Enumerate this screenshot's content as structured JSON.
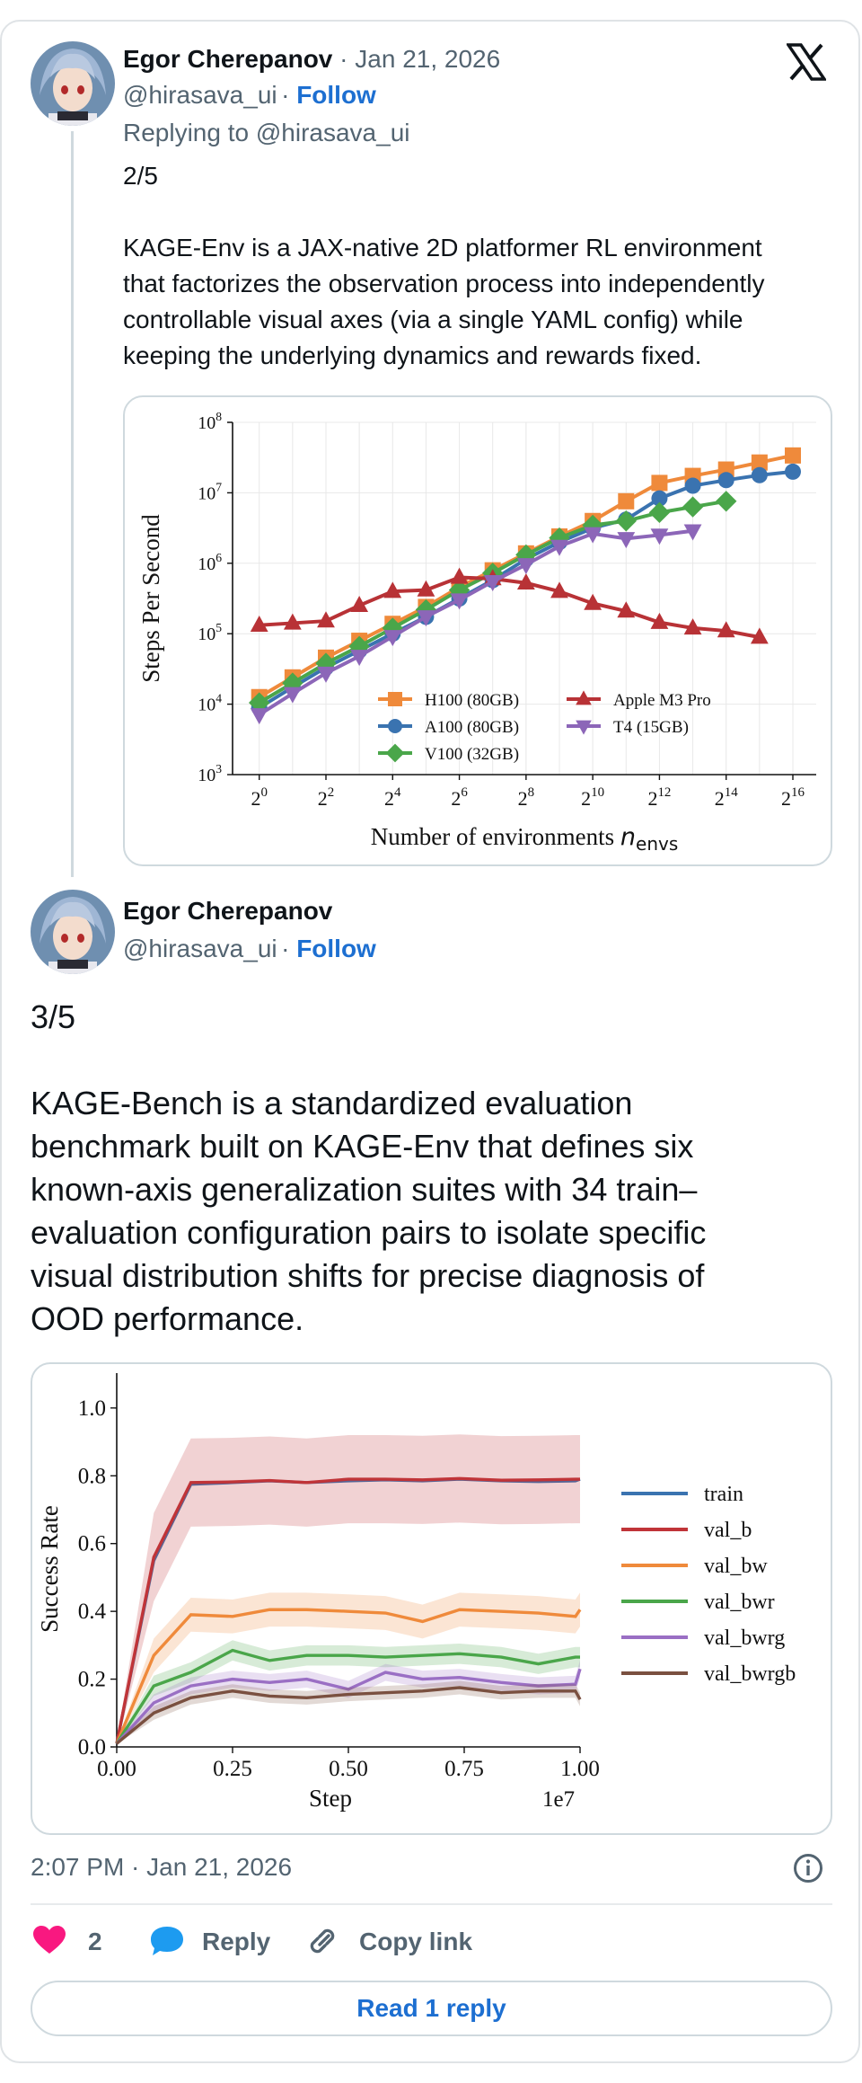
{
  "tweet1": {
    "author_name": "Egor Cherepanov",
    "date": "Jan 21, 2026",
    "handle": "@hirasava_ui",
    "follow_label": "Follow",
    "replying_to": "Replying to @hirasava_ui",
    "text_1": "2/5",
    "text_lines": [
      "KAGE-Env is a JAX-native 2D platformer RL environment",
      "that factorizes the observation process into independently",
      "controllable visual axes (via a single YAML config) while",
      "keeping the underlying dynamics and rewards fixed."
    ]
  },
  "tweet2": {
    "author_name": "Egor Cherepanov",
    "handle": "@hirasava_ui",
    "follow_label": "Follow",
    "text_1": "3/5",
    "text_lines": [
      "KAGE-Bench is a standardized evaluation",
      "benchmark built on KAGE-Env that defines six",
      "known-axis generalization suites with 34 train–",
      "evaluation configuration pairs to isolate specific",
      "visual distribution shifts for precise diagnosis of",
      "OOD performance."
    ]
  },
  "footer": {
    "timestamp": "2:07 PM · Jan 21, 2026",
    "like_count": "2",
    "reply_label": "Reply",
    "copy_link_label": "Copy link",
    "read_reply_label": "Read 1 reply"
  },
  "colors": {
    "link_blue": "#1d6fd1",
    "heart_red": "#f91880",
    "reply_blue": "#1d9bf0"
  },
  "chart_data": [
    {
      "type": "line",
      "title": "",
      "xlabel": "Number of environments n_envs",
      "ylabel": "Steps Per Second",
      "x_scale": "log2",
      "y_scale": "log10",
      "x_tick_labels": [
        "2^0",
        "2^2",
        "2^4",
        "2^6",
        "2^8",
        "2^10",
        "2^12",
        "2^14",
        "2^16"
      ],
      "y_tick_labels": [
        "10^3",
        "10^4",
        "10^5",
        "10^6",
        "10^7",
        "10^8"
      ],
      "x_range_log2": [
        -0.8,
        16.7
      ],
      "y_range_log10": [
        3,
        8
      ],
      "grid": true,
      "legend_position": "lower-right",
      "series": [
        {
          "name": "H100 (80GB)",
          "color": "#ef8a3b",
          "marker": "square",
          "x_log2": [
            0,
            1,
            2,
            3,
            4,
            5,
            6,
            7,
            8,
            9,
            10,
            11,
            12,
            13,
            14,
            15,
            16
          ],
          "y_log10": [
            4.1,
            4.38,
            4.66,
            4.9,
            5.14,
            5.38,
            5.66,
            5.9,
            6.14,
            6.38,
            6.6,
            6.88,
            7.14,
            7.24,
            7.33,
            7.43,
            7.53
          ]
        },
        {
          "name": "A100 (80GB)",
          "color": "#3a73b0",
          "marker": "circle",
          "x_log2": [
            0,
            1,
            2,
            3,
            4,
            5,
            6,
            7,
            8,
            9,
            10,
            11,
            12,
            13,
            14,
            15,
            16
          ],
          "y_log10": [
            3.95,
            4.24,
            4.52,
            4.76,
            5.0,
            5.24,
            5.5,
            5.76,
            6.06,
            6.3,
            6.5,
            6.62,
            6.92,
            7.1,
            7.18,
            7.25,
            7.3
          ]
        },
        {
          "name": "V100 (32GB)",
          "color": "#4aa64a",
          "marker": "diamond",
          "x_log2": [
            0,
            1,
            2,
            3,
            4,
            5,
            6,
            7,
            8,
            9,
            10,
            11,
            12,
            13,
            14
          ],
          "y_log10": [
            4.02,
            4.3,
            4.58,
            4.82,
            5.08,
            5.34,
            5.62,
            5.86,
            6.12,
            6.36,
            6.54,
            6.6,
            6.72,
            6.8,
            6.88
          ]
        },
        {
          "name": "Apple M3 Pro",
          "color": "#b83236",
          "marker": "triangle-up",
          "x_log2": [
            0,
            1,
            2,
            3,
            4,
            5,
            6,
            7,
            8,
            9,
            10,
            11,
            12,
            13,
            14,
            15
          ],
          "y_log10": [
            5.12,
            5.15,
            5.18,
            5.4,
            5.6,
            5.62,
            5.8,
            5.78,
            5.72,
            5.6,
            5.43,
            5.32,
            5.16,
            5.08,
            5.04,
            4.95
          ]
        },
        {
          "name": "T4 (15GB)",
          "color": "#8c66b8",
          "marker": "triangle-down",
          "x_log2": [
            0,
            1,
            2,
            3,
            4,
            5,
            6,
            7,
            8,
            9,
            10,
            11,
            12,
            13
          ],
          "y_log10": [
            3.85,
            4.15,
            4.44,
            4.68,
            4.96,
            5.24,
            5.48,
            5.74,
            5.98,
            6.24,
            6.42,
            6.35,
            6.4,
            6.46
          ]
        }
      ]
    },
    {
      "type": "line",
      "title": "",
      "xlabel": "Step",
      "ylabel": "Success Rate",
      "x_multiplier_label": "1e7",
      "x_ticks": [
        0.0,
        0.25,
        0.5,
        0.75,
        1.0
      ],
      "x_tick_labels": [
        "0.00",
        "0.25",
        "0.50",
        "0.75",
        "1.00"
      ],
      "y_ticks": [
        0.0,
        0.2,
        0.4,
        0.6,
        0.8,
        1.0
      ],
      "y_tick_labels": [
        "0.0",
        "0.2",
        "0.4",
        "0.6",
        "0.8",
        "1.0"
      ],
      "xlim": [
        0,
        1.0
      ],
      "ylim": [
        0,
        1.05
      ],
      "grid": false,
      "legend_position": "right",
      "x": [
        0,
        0.08,
        0.16,
        0.25,
        0.33,
        0.41,
        0.5,
        0.58,
        0.66,
        0.74,
        0.83,
        0.91,
        0.99,
        1.0
      ],
      "series": [
        {
          "name": "train",
          "color": "#3a73b0",
          "values": [
            0.01,
            0.55,
            0.775,
            0.78,
            0.785,
            0.78,
            0.785,
            0.788,
            0.785,
            0.79,
            0.785,
            0.783,
            0.785,
            0.79
          ],
          "band": 0.0
        },
        {
          "name": "val_b",
          "color": "#c03438",
          "values": [
            0.01,
            0.56,
            0.78,
            0.782,
            0.786,
            0.78,
            0.79,
            0.79,
            0.788,
            0.792,
            0.787,
            0.788,
            0.79,
            0.79
          ],
          "band": 0.13
        },
        {
          "name": "val_bw",
          "color": "#ef8a3b",
          "values": [
            0.01,
            0.27,
            0.39,
            0.385,
            0.405,
            0.405,
            0.4,
            0.395,
            0.37,
            0.405,
            0.4,
            0.395,
            0.385,
            0.405
          ],
          "band": 0.05
        },
        {
          "name": "val_bwr",
          "color": "#4aa64a",
          "values": [
            0.01,
            0.18,
            0.22,
            0.285,
            0.255,
            0.27,
            0.27,
            0.265,
            0.27,
            0.275,
            0.265,
            0.245,
            0.265,
            0.265
          ],
          "band": 0.03
        },
        {
          "name": "val_bwrg",
          "color": "#9a6fc4",
          "values": [
            0.01,
            0.13,
            0.18,
            0.2,
            0.19,
            0.2,
            0.17,
            0.22,
            0.2,
            0.205,
            0.19,
            0.18,
            0.185,
            0.23
          ],
          "band": 0.025
        },
        {
          "name": "val_bwrgb",
          "color": "#7a5040",
          "values": [
            0.01,
            0.1,
            0.145,
            0.165,
            0.15,
            0.145,
            0.155,
            0.16,
            0.165,
            0.175,
            0.16,
            0.165,
            0.165,
            0.14
          ],
          "band": 0.02
        }
      ]
    }
  ]
}
